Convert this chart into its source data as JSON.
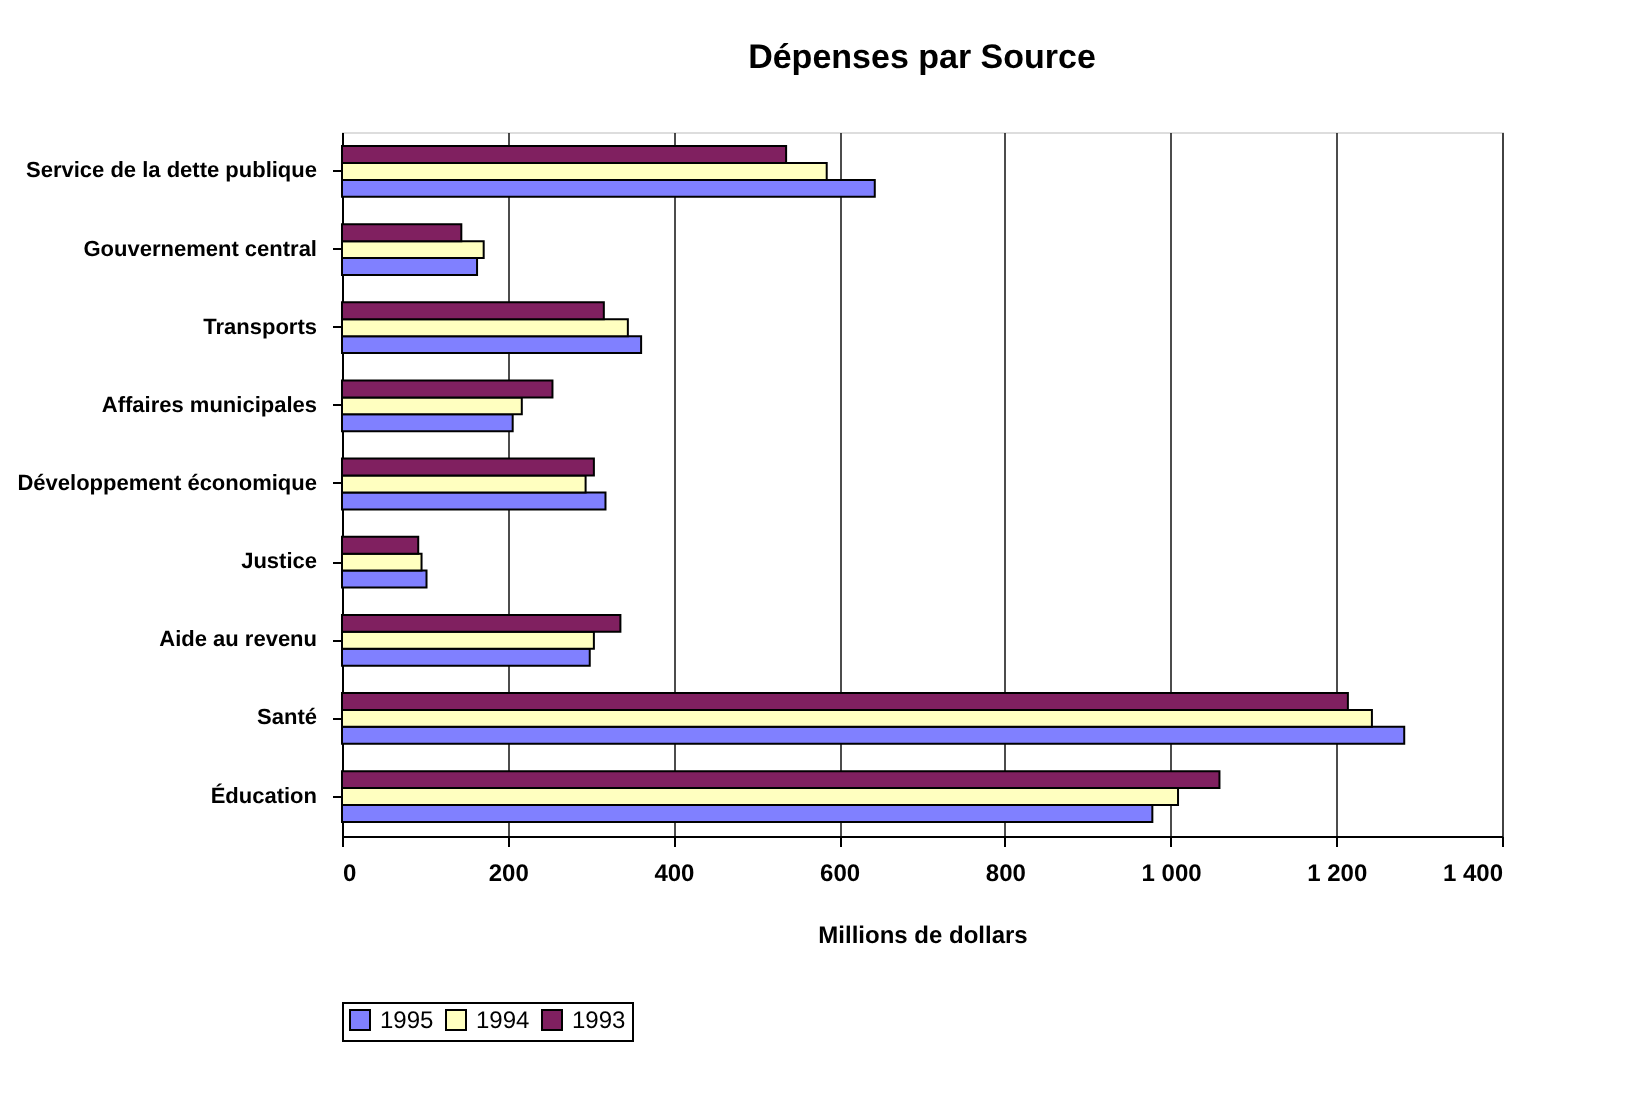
{
  "chart_data": {
    "type": "bar",
    "orientation": "horizontal",
    "title": "Dépenses par Source",
    "xlabel": "Millions de dollars",
    "categories": [
      "Service de la dette publique",
      "Gouvernement central",
      "Transports",
      "Affaires municipales",
      "Développement économique",
      "Justice",
      "Aide au revenu",
      "Santé",
      "Éducation"
    ],
    "series": [
      {
        "name": "1995",
        "color": "#8080ff",
        "values": [
          643,
          163,
          361,
          206,
          318,
          102,
          299,
          1282,
          978
        ]
      },
      {
        "name": "1994",
        "color": "#ffffc0",
        "values": [
          585,
          171,
          345,
          217,
          294,
          96,
          304,
          1243,
          1009
        ]
      },
      {
        "name": "1993",
        "color": "#802060",
        "values": [
          536,
          144,
          316,
          254,
          304,
          92,
          336,
          1214,
          1059
        ]
      }
    ],
    "xlim": [
      0,
      1400
    ],
    "xticks": [
      0,
      200,
      400,
      600,
      800,
      {
        "value": 1000,
        "label": "1 000"
      },
      {
        "value": 1200,
        "label": "1 200"
      },
      {
        "value": 1400,
        "label": "1 400"
      }
    ],
    "grid": "x",
    "legend": "bottom"
  }
}
